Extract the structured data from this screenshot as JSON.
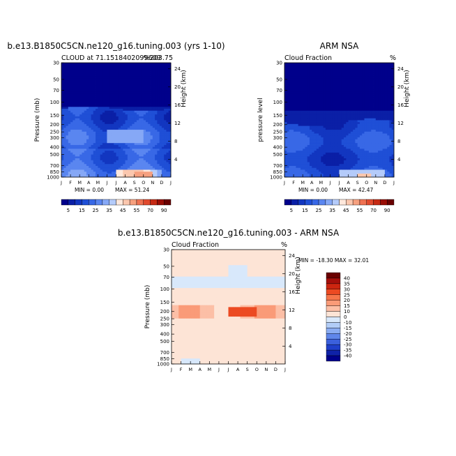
{
  "chart_data": [
    {
      "type": "heatmap",
      "id": "model",
      "title": "b.e13.B1850C5CN.ne120_g16.tuning.003 (yrs 1-10)",
      "subtitle_left": "CLOUD at 71.1518402099609",
      "subtitle_right": "%203.75",
      "ylabel": "Pressure (mb)",
      "ylabel_right": "Height (km)",
      "months": [
        "J",
        "F",
        "M",
        "A",
        "M",
        "J",
        "J",
        "A",
        "S",
        "O",
        "N",
        "D",
        "J"
      ],
      "pressure_ticks": [
        "30",
        "50",
        "70",
        "100",
        "150",
        "200",
        "250",
        "300",
        "400",
        "500",
        "700",
        "850",
        "1000"
      ],
      "height_ticks": [
        "24",
        "20",
        "16",
        "12",
        "8",
        "4"
      ],
      "min_label": "MIN =    0.00",
      "max_label": "MAX =   51.24",
      "min": 0.0,
      "max": 51.24,
      "colorbar_labels": [
        "5",
        "15",
        "25",
        "35",
        "45",
        "55",
        "70",
        "90"
      ],
      "colorbar_levels": [
        5,
        10,
        15,
        20,
        25,
        30,
        35,
        40,
        45,
        50,
        55,
        60,
        70,
        80,
        90
      ]
    },
    {
      "type": "heatmap",
      "id": "obs",
      "title": "ARM NSA",
      "subtitle_left": "Cloud Fraction",
      "subtitle_right": "%",
      "ylabel": "pressure level",
      "ylabel_right": "Height (km)",
      "months": [
        "J",
        "F",
        "M",
        "A",
        "M",
        "J",
        "J",
        "A",
        "S",
        "O",
        "N",
        "D",
        "J"
      ],
      "pressure_ticks": [
        "30",
        "50",
        "70",
        "100",
        "150",
        "200",
        "250",
        "300",
        "400",
        "500",
        "700",
        "850",
        "1000"
      ],
      "height_ticks": [
        "24",
        "20",
        "16",
        "12",
        "8",
        "4"
      ],
      "min_label": "MIN =    0.00",
      "max_label": "MAX =   42.47",
      "min": 0.0,
      "max": 42.47,
      "colorbar_labels": [
        "5",
        "15",
        "25",
        "35",
        "45",
        "55",
        "70",
        "90"
      ],
      "colorbar_levels": [
        5,
        10,
        15,
        20,
        25,
        30,
        35,
        40,
        45,
        50,
        55,
        60,
        70,
        80,
        90
      ]
    },
    {
      "type": "heatmap",
      "id": "diff",
      "title": "b.e13.B1850C5CN.ne120_g16.tuning.003 - ARM NSA",
      "subtitle_left": "Cloud Fraction",
      "subtitle_right": "%",
      "ylabel": "Pressure (mb)",
      "ylabel_right": "Height (km)",
      "months": [
        "J",
        "F",
        "M",
        "A",
        "M",
        "J",
        "J",
        "A",
        "S",
        "O",
        "N",
        "D",
        "J"
      ],
      "pressure_ticks": [
        "30",
        "50",
        "70",
        "100",
        "150",
        "200",
        "250",
        "300",
        "400",
        "500",
        "700",
        "850",
        "1000"
      ],
      "height_ticks": [
        "24",
        "20",
        "16",
        "12",
        "8",
        "4"
      ],
      "minmax_label": "MIN = -18.30  MAX =  32.01",
      "min": -18.3,
      "max": 32.01,
      "colorbar_labels": [
        "40",
        "35",
        "30",
        "25",
        "20",
        "15",
        "10",
        "0",
        "-10",
        "-15",
        "-20",
        "-25",
        "-30",
        "-35",
        "-40"
      ]
    }
  ],
  "palettes": {
    "abs": [
      "#00008b",
      "#0a1fa6",
      "#1236c0",
      "#1f4fd6",
      "#3868e6",
      "#5a86f0",
      "#86a8f6",
      "#b4cbfa",
      "#ffe8dc",
      "#fbc7ae",
      "#f6a07f",
      "#ef7252",
      "#e14a2e",
      "#c62a14",
      "#990d05",
      "#6a0000"
    ],
    "diff": [
      "#6a0000",
      "#a50f0b",
      "#cc2510",
      "#ec4a22",
      "#f6764a",
      "#fa9b78",
      "#fcbfa6",
      "#fde4d6",
      "#d8e8fb",
      "#b2cdf7",
      "#8aacf2",
      "#5f86ea",
      "#3b60dc",
      "#1f3fca",
      "#0f22a8",
      "#00008b"
    ]
  }
}
